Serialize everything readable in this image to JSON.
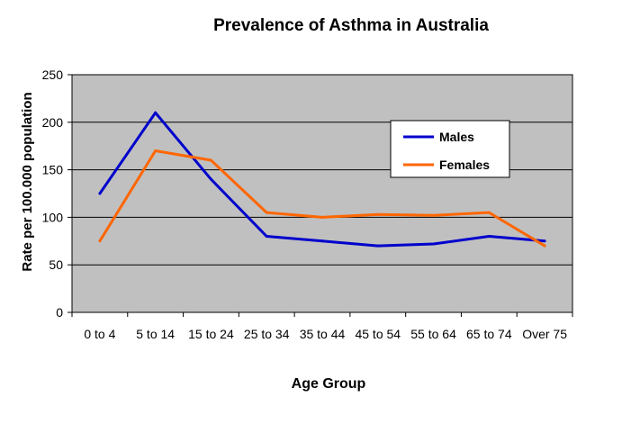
{
  "chart_data": {
    "type": "line",
    "title": "Prevalence of Asthma in Australia",
    "xlabel": "Age Group",
    "ylabel": "Rate per 100.000 population",
    "categories": [
      "0 to 4",
      "5 to 14",
      "15 to 24",
      "25 to 34",
      "35 to 44",
      "45 to 54",
      "55 to 64",
      "65 to 74",
      "Over 75"
    ],
    "ylim": [
      0,
      250
    ],
    "yticks": [
      0,
      50,
      100,
      150,
      200,
      250
    ],
    "grid": true,
    "legend_position": "top-right",
    "plot_background": "#c0c0c0",
    "series": [
      {
        "name": "Males",
        "color": "#0000cc",
        "values": [
          125,
          210,
          140,
          80,
          75,
          70,
          72,
          80,
          75
        ]
      },
      {
        "name": "Females",
        "color": "#ff6600",
        "values": [
          75,
          170,
          160,
          105,
          100,
          103,
          102,
          105,
          70
        ]
      }
    ]
  }
}
